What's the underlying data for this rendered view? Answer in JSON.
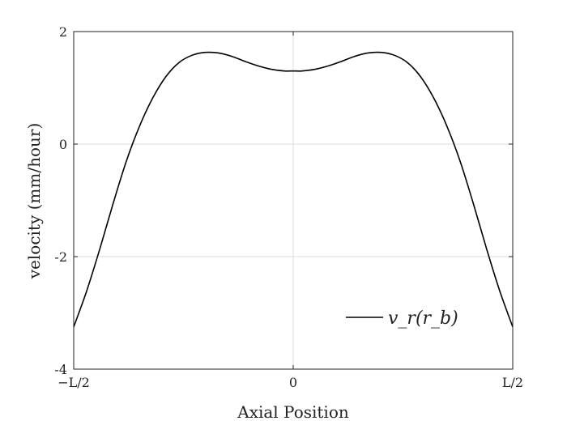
{
  "chart_data": {
    "type": "line",
    "xlabel": "Axial Position",
    "ylabel": "velocity (mm/hour)",
    "xlim": [
      -0.5,
      0.5
    ],
    "ylim": [
      -4,
      2
    ],
    "x_ticks": [
      {
        "value": -0.5,
        "label": "−L/2"
      },
      {
        "value": 0,
        "label": "0"
      },
      {
        "value": 0.5,
        "label": "L/2"
      }
    ],
    "y_ticks": [
      {
        "value": -4,
        "label": "-4"
      },
      {
        "value": -2,
        "label": "-2"
      },
      {
        "value": 0,
        "label": "0"
      },
      {
        "value": 2,
        "label": "2"
      }
    ],
    "grid": true,
    "legend_position": "bottom-right",
    "series": [
      {
        "name": "v_r(r_b)",
        "color": "#000000",
        "points": [
          [
            -0.5,
            -3.25
          ],
          [
            -0.47,
            -2.6
          ],
          [
            -0.44,
            -1.85
          ],
          [
            -0.41,
            -1.05
          ],
          [
            -0.38,
            -0.3
          ],
          [
            -0.35,
            0.32
          ],
          [
            -0.32,
            0.82
          ],
          [
            -0.29,
            1.2
          ],
          [
            -0.26,
            1.45
          ],
          [
            -0.23,
            1.58
          ],
          [
            -0.2,
            1.63
          ],
          [
            -0.17,
            1.62
          ],
          [
            -0.14,
            1.56
          ],
          [
            -0.11,
            1.47
          ],
          [
            -0.08,
            1.39
          ],
          [
            -0.05,
            1.33
          ],
          [
            -0.02,
            1.3
          ],
          [
            0,
            1.3
          ],
          [
            0.02,
            1.3
          ],
          [
            0.05,
            1.33
          ],
          [
            0.08,
            1.39
          ],
          [
            0.11,
            1.47
          ],
          [
            0.14,
            1.56
          ],
          [
            0.17,
            1.62
          ],
          [
            0.2,
            1.63
          ],
          [
            0.23,
            1.58
          ],
          [
            0.26,
            1.45
          ],
          [
            0.29,
            1.2
          ],
          [
            0.32,
            0.82
          ],
          [
            0.35,
            0.32
          ],
          [
            0.38,
            -0.3
          ],
          [
            0.41,
            -1.05
          ],
          [
            0.44,
            -1.85
          ],
          [
            0.47,
            -2.6
          ],
          [
            0.5,
            -3.25
          ]
        ]
      }
    ]
  }
}
